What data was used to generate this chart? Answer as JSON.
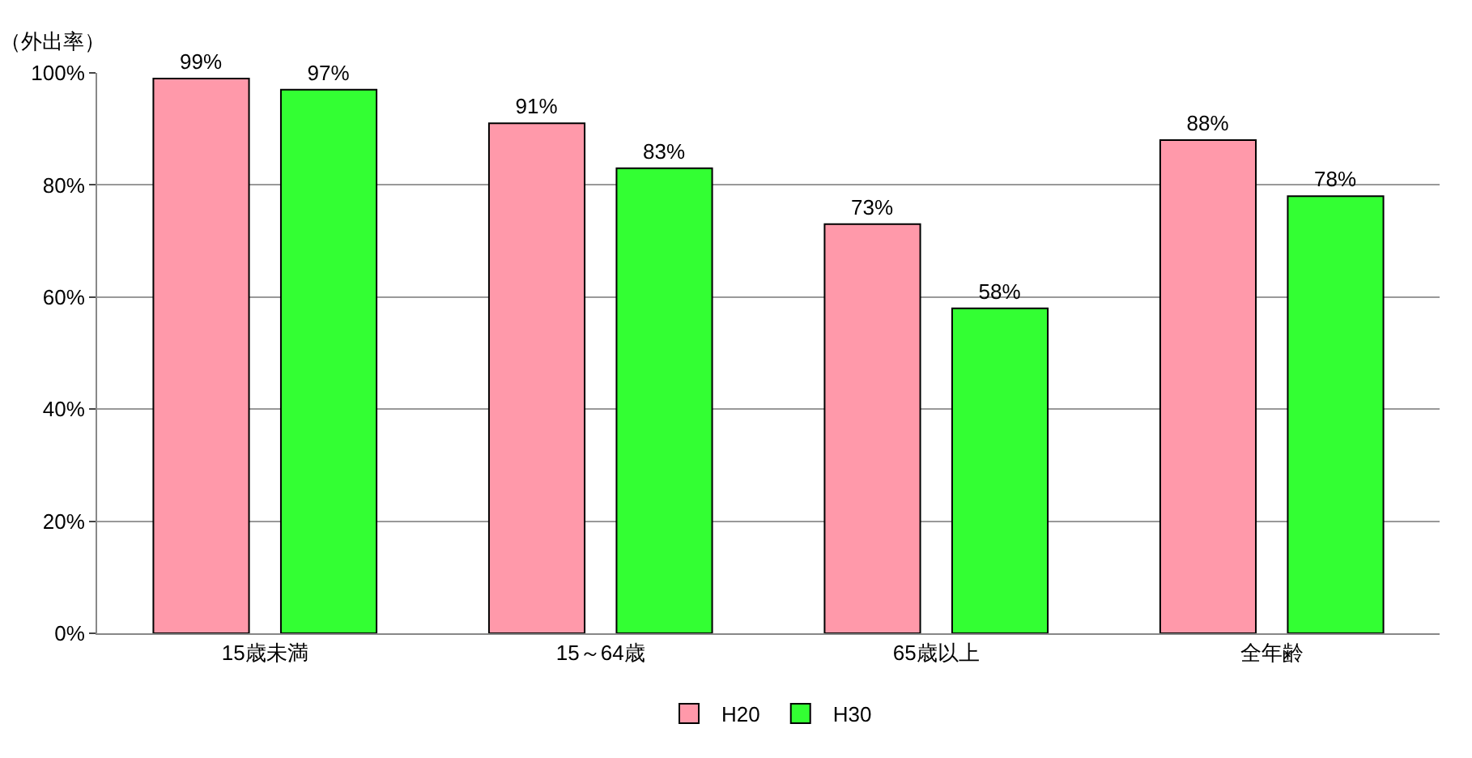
{
  "chart_data": {
    "type": "bar",
    "ylabel": "（外出率）",
    "categories": [
      "15歳未満",
      "15～64歳",
      "65歳以上",
      "全年齢"
    ],
    "series": [
      {
        "name": "H20",
        "color": "#ff99aa",
        "values": [
          99,
          91,
          73,
          88
        ],
        "value_labels": [
          "99%",
          "91%",
          "73%",
          "88%"
        ]
      },
      {
        "name": "H30",
        "color": "#33ff33",
        "values": [
          97,
          83,
          58,
          78
        ],
        "value_labels": [
          "97%",
          "83%",
          "58%",
          "78%"
        ]
      }
    ],
    "ylim": [
      0,
      100
    ],
    "yticks": [
      {
        "value": 0,
        "label": "0%"
      },
      {
        "value": 20,
        "label": "20%"
      },
      {
        "value": 40,
        "label": "40%"
      },
      {
        "value": 60,
        "label": "60%"
      },
      {
        "value": 80,
        "label": "80%"
      },
      {
        "value": 100,
        "label": "100%"
      }
    ],
    "grid": "y",
    "legend": "bottom"
  }
}
